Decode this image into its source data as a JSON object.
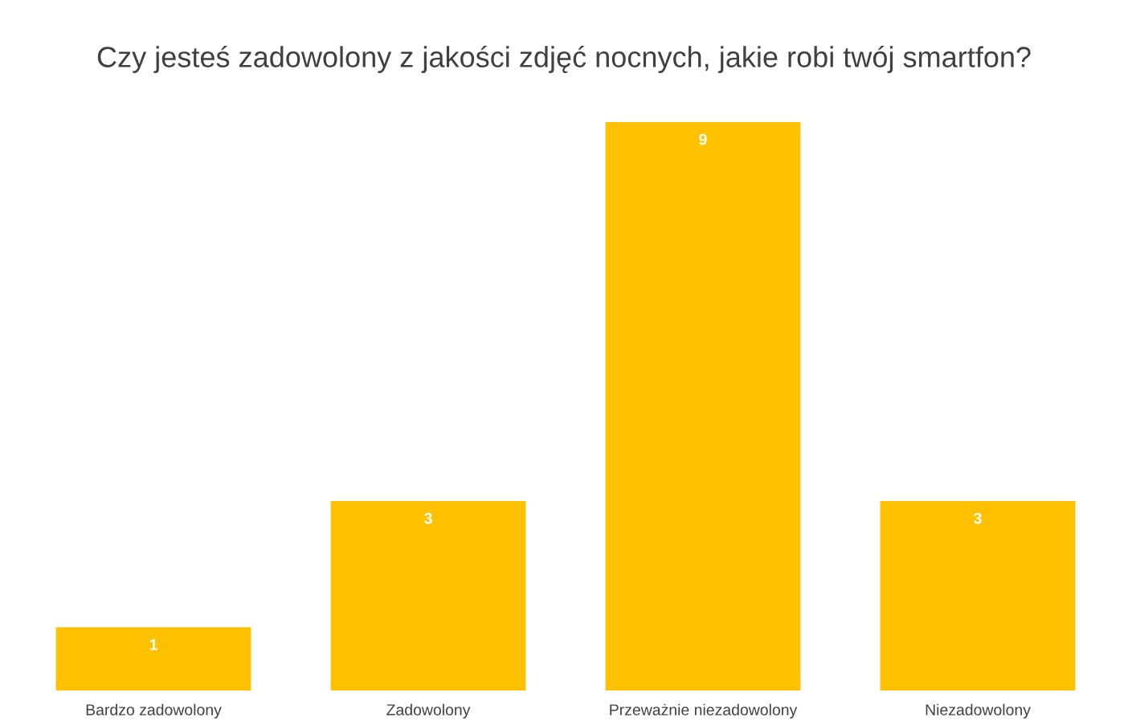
{
  "chart_data": {
    "type": "bar",
    "title": "Czy jesteś zadowolony z jakości zdjęć nocnych, jakie robi twój smartfon?",
    "categories": [
      "Bardzo zadowolony",
      "Zadowolony",
      "Przeważnie niezadowolony",
      "Niezadowolony"
    ],
    "values": [
      1,
      3,
      9,
      3
    ],
    "color": "#ffc000",
    "data_labels": true,
    "grid": false,
    "legend": false
  }
}
